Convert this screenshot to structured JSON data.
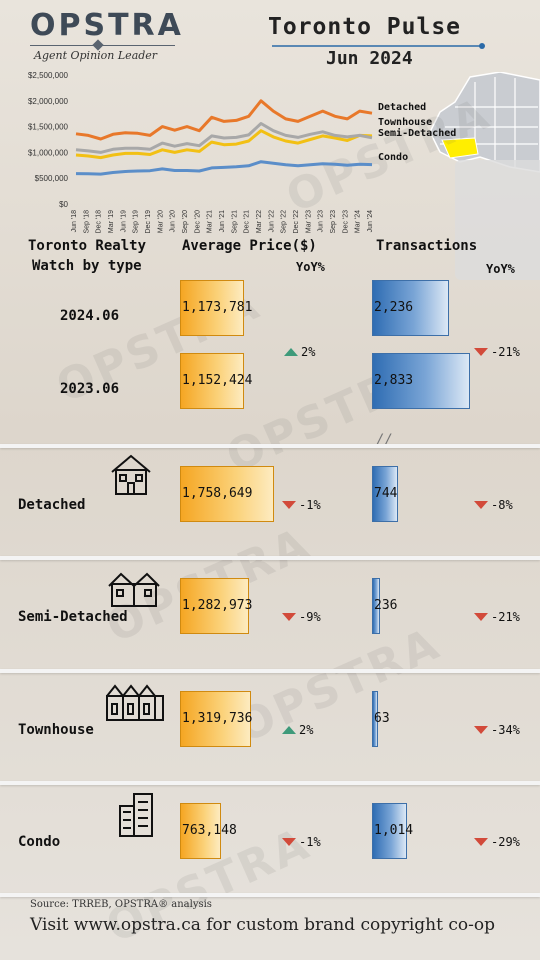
{
  "brand": {
    "name": "OPSTRA",
    "tagline": "Agent Opinion Leader"
  },
  "title": {
    "main": "Toronto Pulse",
    "date": "Jun 2024"
  },
  "headers": {
    "col1_line1": "Toronto Realty",
    "col1_line2": "Watch by type",
    "avg_price": "Average Price($)",
    "yoy": "YoY%",
    "transactions": "Transactions",
    "yoy2": "YoY%"
  },
  "summary": [
    {
      "label": "2024.06",
      "price": "1,173,781",
      "tx": "2,236"
    },
    {
      "label": "2023.06",
      "price": "1,152,424",
      "tx": "2,833"
    }
  ],
  "summary_yoy": {
    "price": "2%",
    "price_dir": "up",
    "tx": "-21%",
    "tx_dir": "down"
  },
  "axis_break": "//",
  "types": [
    {
      "name": "Detached",
      "price": "1,758,649",
      "price_yoy": "-1%",
      "price_dir": "down",
      "tx": "744",
      "tx_yoy": "-8%",
      "tx_dir": "down",
      "icon": "detached-house-icon"
    },
    {
      "name": "Semi-Detached",
      "price": "1,282,973",
      "price_yoy": "-9%",
      "price_dir": "down",
      "tx": "236",
      "tx_yoy": "-21%",
      "tx_dir": "down",
      "icon": "semi-detached-house-icon"
    },
    {
      "name": "Townhouse",
      "price": "1,319,736",
      "price_yoy": "2%",
      "price_dir": "up",
      "tx": "63",
      "tx_yoy": "-34%",
      "tx_dir": "down",
      "icon": "townhouse-icon"
    },
    {
      "name": "Condo",
      "price": "763,148",
      "price_yoy": "-1%",
      "price_dir": "down",
      "tx": "1,014",
      "tx_yoy": "-29%",
      "tx_dir": "down",
      "icon": "condo-building-icon"
    }
  ],
  "footer": {
    "source": "Source: TRREB, OPSTRA® analysis",
    "cta": "Visit www.opstra.ca for custom brand copyright co-op"
  },
  "colors": {
    "detached": "#e8782a",
    "townhouse": "#f2c014",
    "semi": "#a8a8a8",
    "condo": "#5b8ec9",
    "price_bar": "#f5a623",
    "tx_bar": "#2f6db3",
    "down": "#d24a3a",
    "up": "#3e9a7a"
  },
  "chart_data": [
    {
      "type": "line",
      "title": "",
      "xlabel": "",
      "ylabel": "",
      "ylim": [
        0,
        2500000
      ],
      "yticks": [
        "$0",
        "$500,000",
        "$1,000,000",
        "$1,500,000",
        "$2,000,000",
        "$2,500,000"
      ],
      "x": [
        "Jun '18",
        "Sep '18",
        "Dec '18",
        "Mar '19",
        "Jun '19",
        "Sep '19",
        "Dec '19",
        "Mar '20",
        "Jun '20",
        "Sep '20",
        "Dec '20",
        "Mar '21",
        "Jun '21",
        "Sep '21",
        "Dec '21",
        "Mar '22",
        "Jun '22",
        "Sep '22",
        "Dec '22",
        "Mar '23",
        "Jun '23",
        "Sep '23",
        "Dec '23",
        "Mar '24",
        "Jun '24"
      ],
      "series": [
        {
          "name": "Detached",
          "values": [
            1360000,
            1330000,
            1260000,
            1350000,
            1380000,
            1370000,
            1330000,
            1500000,
            1430000,
            1500000,
            1420000,
            1680000,
            1600000,
            1620000,
            1700000,
            2000000,
            1800000,
            1650000,
            1600000,
            1700000,
            1800000,
            1700000,
            1650000,
            1800000,
            1760000
          ]
        },
        {
          "name": "Townhouse",
          "values": [
            950000,
            930000,
            900000,
            950000,
            980000,
            980000,
            960000,
            1050000,
            1000000,
            1050000,
            1020000,
            1200000,
            1150000,
            1160000,
            1220000,
            1420000,
            1300000,
            1220000,
            1180000,
            1250000,
            1320000,
            1280000,
            1230000,
            1330000,
            1320000
          ]
        },
        {
          "name": "Semi-Detached",
          "values": [
            1050000,
            1030000,
            1000000,
            1060000,
            1080000,
            1080000,
            1060000,
            1180000,
            1120000,
            1170000,
            1130000,
            1320000,
            1280000,
            1290000,
            1340000,
            1560000,
            1420000,
            1330000,
            1290000,
            1350000,
            1400000,
            1330000,
            1300000,
            1330000,
            1283000
          ]
        },
        {
          "name": "Condo",
          "values": [
            590000,
            585000,
            580000,
            610000,
            630000,
            640000,
            645000,
            680000,
            650000,
            650000,
            640000,
            700000,
            710000,
            720000,
            740000,
            820000,
            790000,
            760000,
            740000,
            760000,
            780000,
            770000,
            750000,
            770000,
            763000
          ]
        }
      ]
    },
    {
      "type": "bar",
      "title": "Average Price($)",
      "categories": [
        "2024.06",
        "2023.06",
        "Detached",
        "Semi-Detached",
        "Townhouse",
        "Condo"
      ],
      "values": [
        1173781,
        1152424,
        1758649,
        1282973,
        1319736,
        763148
      ]
    },
    {
      "type": "bar",
      "title": "Transactions",
      "categories": [
        "2024.06",
        "2023.06",
        "Detached",
        "Semi-Detached",
        "Townhouse",
        "Condo"
      ],
      "values": [
        2236,
        2833,
        744,
        236,
        63,
        1014
      ]
    }
  ]
}
